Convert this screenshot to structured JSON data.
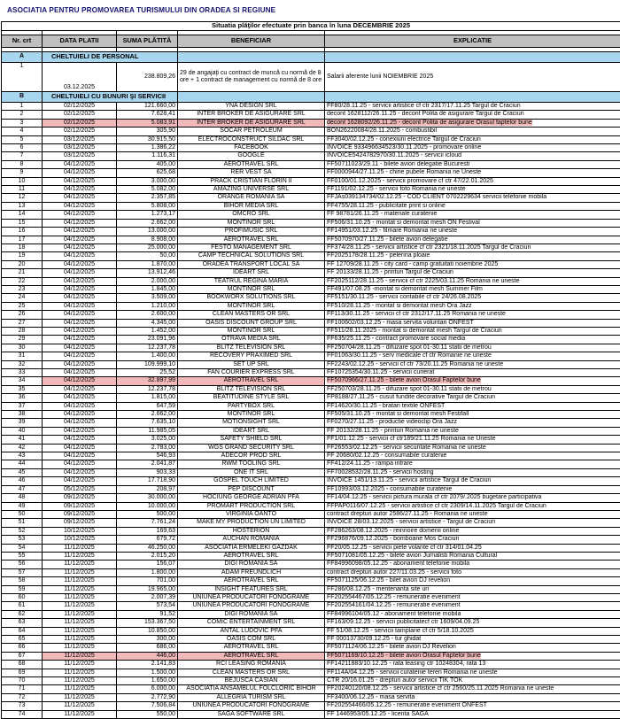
{
  "page_title": "ASOCIATIA PENTRU PROMOVAREA TURISMULUI DIN ORADEA SI REGIUNE",
  "table": {
    "title": "Situatia plăţilor  efectuate prin banca în luna DECEMBRIE 2025",
    "columns": {
      "nr": "Nr. crt",
      "date": "DATA PLATII",
      "amount": "SUMA PLĂTITĂ",
      "beneficiary": "BENEFICIAR",
      "explanation": "EXPLICATIE"
    },
    "section_a": {
      "code": "A",
      "label": "CHELTUIELI DE PERSONAL"
    },
    "personnel_row": {
      "nr": "1",
      "date": "03.12.2025",
      "amount": "238.809,26",
      "beneficiary": "29 de angajaţi cu contract de muncă cu normă de 8 ore + 1 contract de management cu normă de 8 ore",
      "explanation": "Salarii aferente lunii NOIEMBRIE 2025"
    },
    "section_b": {
      "code": "B",
      "label": "CHELTUIELI CU BUNURI ŞI SERVICII"
    },
    "rows": [
      {
        "nr": "1",
        "date": "02/12/2025",
        "amount": "121.660,00",
        "beneficiary": "YNA DESIGN SRL",
        "explanation": "FF80/28.11.25 - servicii artistice cf ctr  2317/17.11.25 Targul de Craciun",
        "highlight": false
      },
      {
        "nr": "2",
        "date": "02/12/2025",
        "amount": "7.628,41",
        "beneficiary": "INTER BROKER DE ASIGURARE SRL",
        "explanation": "decont 1628112/26.11.25 - decont Polita de asigurare  Targul de Craciun",
        "highlight": false
      },
      {
        "nr": "3",
        "date": "02/12/2025",
        "amount": "5.083,91",
        "beneficiary": "INTER BROKER DE ASIGURARE SRL",
        "explanation": "decont 1628092/26.11.25 - decont Polita de asigurare Orasul faptelor bune",
        "highlight": true
      },
      {
        "nr": "4",
        "date": "02/12/2025",
        "amount": "305,90",
        "beneficiary": "SOCAR PETROLEUM",
        "explanation": "BON26220084/28.11.2025 - combustibil",
        "highlight": false
      },
      {
        "nr": "5",
        "date": "03/12/2025",
        "amount": "30.915,50",
        "beneficiary": "ELECTROCONSTRUCT SILDAC SRL",
        "explanation": "FF3040/02.12.25 - conexiuni electrice Targul de Craciun",
        "highlight": false
      },
      {
        "nr": "6",
        "date": "03/12/2025",
        "amount": "1.386,22",
        "beneficiary": "FACEBOOK",
        "explanation": "INVOICE 933496634523/30.11.2025 - promovare online",
        "highlight": false
      },
      {
        "nr": "7",
        "date": "03/12/2025",
        "amount": "1.116,31",
        "beneficiary": "GOOGLE",
        "explanation": "INVOICE5424782970/30.11.2025 - servicii icloud",
        "highlight": false
      },
      {
        "nr": "8",
        "date": "04/12/2025",
        "amount": "405,00",
        "beneficiary": "AEROTRAVEL SRL",
        "explanation": "FF50711023/29.11 - bilete avion delegatie Bucuresti",
        "highlight": false
      },
      {
        "nr": "9",
        "date": "04/12/2025",
        "amount": "625,68",
        "beneficiary": "RER VEST SA",
        "explanation": "FF0000944/27.11.25 - chirie pubele Romania ne Uneste",
        "highlight": false
      },
      {
        "nr": "10",
        "date": "04/12/2025",
        "amount": "3.000,00",
        "beneficiary": "PRACK CRISTIAN FLORIN II",
        "explanation": "FF0100/01.12.2025 - servicii promovare cf ctr 47/22.01.2025",
        "highlight": false
      },
      {
        "nr": "11",
        "date": "04/12/2025",
        "amount": "5.082,00",
        "beneficiary": "AMAZING UNIVERSE SRL",
        "explanation": "FF1191/02.12.25 - servicii foto Romania ne uneste",
        "highlight": false
      },
      {
        "nr": "12",
        "date": "04/12/2025",
        "amount": "2.357,85",
        "beneficiary": "ORANGE ROMANIA SA",
        "explanation": "FFJAs039134734/02.12.25 - COD CLIENT 0702229634 servicii telefonie mobila",
        "highlight": false
      },
      {
        "nr": "13",
        "date": "04/12/2025",
        "amount": "5.808,00",
        "beneficiary": "BIHOR MEDIA SRL",
        "explanation": "FF4755/28.11.25 - publicitate print si online",
        "highlight": false
      },
      {
        "nr": "14",
        "date": "04/12/2025",
        "amount": "1.273,17",
        "beneficiary": "OMCRO SRL",
        "explanation": "FF 98781/26.11.25 - materiale curatenie",
        "highlight": false
      },
      {
        "nr": "15",
        "date": "04/12/2025",
        "amount": "2.662,00",
        "beneficiary": "MONTINOR SRL",
        "explanation": "FF506/31.10.25 - montat si demontat mesh ON Festival",
        "highlight": false
      },
      {
        "nr": "16",
        "date": "04/12/2025",
        "amount": "13.000,00",
        "beneficiary": "PROFIMUSIC SRL",
        "explanation": "FF14951/03.12.25 - filmare Romania ne uneste",
        "highlight": false
      },
      {
        "nr": "17",
        "date": "04/12/2025",
        "amount": "8.908,00",
        "beneficiary": "AEROTRAVEL SRL",
        "explanation": "FF5070970/27.11.25 - bilete avion delegatie",
        "highlight": false
      },
      {
        "nr": "18",
        "date": "04/12/2025",
        "amount": "25.000,00",
        "beneficiary": "FESTO MANAGEMENT SRL",
        "explanation": "FF374/28.11.25 - servicii artistice cf ctr 2321/18.11.2025 Targul de Craciun",
        "highlight": false
      },
      {
        "nr": "19",
        "date": "04/12/2025",
        "amount": "50,00",
        "beneficiary": "CAMP TECHNICAL SOLUTIONS SRL",
        "explanation": "FF2025178/28.11.25 - pelerina ploaie",
        "highlight": false
      },
      {
        "nr": "20",
        "date": "04/12/2025",
        "amount": "1.870,00",
        "beneficiary": "ORADEA TRANSPORT LOCAL SA",
        "explanation": "FF 12709/28.11.25 - city card - camp gratuitati noiembrie 2025",
        "highlight": false
      },
      {
        "nr": "21",
        "date": "04/12/2025",
        "amount": "13.912,46",
        "beneficiary": "IDEART SRL",
        "explanation": "FF 20133/28.11.25 - printuri Targul de Craciun",
        "highlight": false
      },
      {
        "nr": "22",
        "date": "04/12/2025",
        "amount": "2.000,00",
        "beneficiary": "TEATRUL REGINA MARIA",
        "explanation": "FF2025112/28.11.25 - servicii cf ctr 2225/03.11.25 Romania ne uneste",
        "highlight": false
      },
      {
        "nr": "23",
        "date": "04/12/2025",
        "amount": "1.845,00",
        "beneficiary": "MONTINOR SRL",
        "explanation": "FF491/07.08.25 -montat si demontat mesh Summer Film",
        "highlight": false
      },
      {
        "nr": "24",
        "date": "04/12/2025",
        "amount": "3.509,00",
        "beneficiary": "BOOKWORX SOLUTIONS SRL",
        "explanation": "FF5151/30.11.25 - servicii contabile cf ctr 24/26.08.2025",
        "highlight": false
      },
      {
        "nr": "25",
        "date": "04/12/2025",
        "amount": "1.210,00",
        "beneficiary": "MONTINOR SRL",
        "explanation": "FF510/28.11.25 - montat si demontat mesh Ora Jazz",
        "highlight": false
      },
      {
        "nr": "26",
        "date": "04/12/2025",
        "amount": "2.600,00",
        "beneficiary": "CLEAN MASTERS OR SRL",
        "explanation": "FF113/30.11.25 - servicii cf ctr 2312/17.11.25 Romania ne uneste",
        "highlight": false
      },
      {
        "nr": "27",
        "date": "04/12/2025",
        "amount": "4.345,00",
        "beneficiary": "OASIS DISCOUNT GROUP SRL",
        "explanation": "FF100602/03.12.25 - masa servita voluntari ONFEST",
        "highlight": false
      },
      {
        "nr": "28",
        "date": "04/12/2025",
        "amount": "1.452,00",
        "beneficiary": "MONTINOR SRL",
        "explanation": "FF511/28.11.2025 - montat si demontat mesh Targul de Craciun",
        "highlight": false
      },
      {
        "nr": "29",
        "date": "04/12/2025",
        "amount": "23.091,96",
        "beneficiary": "OTRAVA MEDIA SRL",
        "explanation": "FF635/25.11.25 - contract promovare social media",
        "highlight": false
      },
      {
        "nr": "30",
        "date": "04/12/2025",
        "amount": "12.237,78",
        "beneficiary": "BLITZ TELEVISION SRL",
        "explanation": "FF250704/28.11.25 - difuzare spot 01-30.11 statii de metrou",
        "highlight": false
      },
      {
        "nr": "31",
        "date": "04/12/2025",
        "amount": "1.400,00",
        "beneficiary": "RECOVERY PRAXIMED SRL",
        "explanation": "FF01063/30.11.25 - serv medicale cf ctr Romanie ne uneste",
        "highlight": false
      },
      {
        "nr": "32",
        "date": "04/12/2025",
        "amount": "109.999,10",
        "beneficiary": "SET UP SRL",
        "explanation": "FF2243/02.12.25 - servicii cf ctr 73/20.11.25 Romania ne uneste",
        "highlight": false
      },
      {
        "nr": "33",
        "date": "04/12/2025",
        "amount": "25,52",
        "beneficiary": "FAN COURIER EXPRESS SRL",
        "explanation": "FF10725354/30.11.25 - servicii curierat",
        "highlight": false
      },
      {
        "nr": "34",
        "date": "04/12/2025",
        "amount": "32.897,99",
        "beneficiary": "AEROTRAVEL SRL",
        "explanation": "FF5070966/27.11.25 - bilete avion Orasul Faptelor bune",
        "highlight": true
      },
      {
        "nr": "35",
        "date": "04/12/2025",
        "amount": "12.237,78",
        "beneficiary": "BLITZ TELEVISION SRL",
        "explanation": "FF250703/28.11.25 - difuzare spot 01-30.11 statii de metrou",
        "highlight": false
      },
      {
        "nr": "36",
        "date": "04/12/2025",
        "amount": "1.815,00",
        "beneficiary": "BEATITUDINE STYLE SRL",
        "explanation": "FP8188/27.11.25 - cusut fundite decorative Targul de Craciun",
        "highlight": false
      },
      {
        "nr": "37",
        "date": "04/12/2025",
        "amount": "647,59",
        "beneficiary": "PARTYBOX SRL",
        "explanation": "FF14620/30.11.25 - bratari textile ONFEST",
        "highlight": false
      },
      {
        "nr": "38",
        "date": "04/12/2025",
        "amount": "2.662,00",
        "beneficiary": "MONTINOR SRL",
        "explanation": "FF505/31.10.25 - montat si demontat mesh Festifall",
        "highlight": false
      },
      {
        "nr": "39",
        "date": "04/12/2025",
        "amount": "7.635,10",
        "beneficiary": "MOTIONSIGHT SRL",
        "explanation": "FF0270/27.11.25 - productie videoclip Ora Jazz",
        "highlight": false
      },
      {
        "nr": "40",
        "date": "04/12/2025",
        "amount": "11.985,05",
        "beneficiary": "IDEART SRL",
        "explanation": "FF 20132/28.11.25 - printuri Romania ne uneste",
        "highlight": false
      },
      {
        "nr": "41",
        "date": "04/12/2025",
        "amount": "3.025,00",
        "beneficiary": "SAFETY SHIELD SRL",
        "explanation": "FF1/01.12.25 - servicii cf ctr189/21.11.25 Romania ne Uneste",
        "highlight": false
      },
      {
        "nr": "42",
        "date": "04/12/2025",
        "amount": "2.783,00",
        "beneficiary": "WGS GRAND SECURITY SRL",
        "explanation": "FF26553/02.12.25 - servicii securitate Romania ne uneste",
        "highlight": false
      },
      {
        "nr": "43",
        "date": "04/12/2025",
        "amount": "546,93",
        "beneficiary": "ADECOR PROD SRL",
        "explanation": "FF 20680/02.12.25 - consumabile curatenie",
        "highlight": false
      },
      {
        "nr": "44",
        "date": "04/12/2025",
        "amount": "2.041,87",
        "beneficiary": "RWM TOOLING SRL",
        "explanation": "FF412/24.11.25 - rampa intrare",
        "highlight": false
      },
      {
        "nr": "45",
        "date": "04/12/2025",
        "amount": "903,33",
        "beneficiary": "ONE IT SRL",
        "explanation": "FF70028532/28.11.25 - servicii hosting",
        "highlight": false
      },
      {
        "nr": "46",
        "date": "04/12/2025",
        "amount": "17.718,90",
        "beneficiary": "GOSPEL TOUCH LIMITED",
        "explanation": "INVOICE 1451/13.11.25 - servicii artistice Targul de Craciun",
        "highlight": false
      },
      {
        "nr": "47",
        "date": "05/12/2025",
        "amount": "208,97",
        "beneficiary": "PEP DISCOUNT",
        "explanation": "FF10993/03.12.2025 - consumabile curatenie",
        "highlight": false
      },
      {
        "nr": "48",
        "date": "09/12/2025",
        "amount": "30.000,00",
        "beneficiary": "HOCIUNG GEORGE ADRIAN PFA",
        "explanation": "FF14/04.12.25 - servicii pictura murala cf ctr 2079/.2025 bugetare participativa",
        "highlight": false
      },
      {
        "nr": "49",
        "date": "09/12/2025",
        "amount": "10.000,00",
        "beneficiary": "PROMART PRODUCTION SRL",
        "explanation": "FFPAP0116/07.12.25 - servicii artistice cf ctr 2309/14.11.2025 Targul de Craciun",
        "highlight": false
      },
      {
        "nr": "50",
        "date": "09/12/2025",
        "amount": "500,00",
        "beneficiary": "VIRGINIA OANTO",
        "explanation": "contract drepturi autor 2586/27.11.25 - Romania ne uneste",
        "highlight": false
      },
      {
        "nr": "51",
        "date": "09/12/2025",
        "amount": "7.761,24",
        "beneficiary": "MAKE MY PRODUCTION UN LIMITED",
        "explanation": "INVOICE 28/03.12.2025 - servicii artistice - Targul de Craciun",
        "highlight": false
      },
      {
        "nr": "52",
        "date": "10/12/2025",
        "amount": "169,63",
        "beneficiary": "HOSTERION",
        "explanation": "FF286263/08.12.2025 - reinnoire domenii online",
        "highlight": false
      },
      {
        "nr": "53",
        "date": "10/12/2025",
        "amount": "679,72",
        "beneficiary": "AUCHAN ROMANIA",
        "explanation": "FF296876/09.12.2025 - bomboane Mos Craciun",
        "highlight": false
      },
      {
        "nr": "54",
        "date": "11/12/2025",
        "amount": "46.250,00",
        "beneficiary": "ASOCIATIA ERMELEKI GAZDAK",
        "explanation": "FF20/05.12.25 - servicii piete volante cf ctr 314/01.04.25",
        "highlight": false
      },
      {
        "nr": "55",
        "date": "11/12/2025",
        "amount": "2.015,20",
        "beneficiary": "AEROTRAVEL SRL",
        "explanation": "FF5071081/05.12.25 - bilete avion Jurnalisti Romania Cultural",
        "highlight": false
      },
      {
        "nr": "56",
        "date": "11/12/2025",
        "amount": "156,07",
        "beneficiary": "DIGI ROMANIA SA",
        "explanation": "FF84996098/05.12.25 - abonament telefonie mobila",
        "highlight": false
      },
      {
        "nr": "57",
        "date": "11/12/2025",
        "amount": "1.800,00",
        "beneficiary": "ADAM FREUNDLICH",
        "explanation": "contract drepturi autor 227/11.03.25 - servicii foto",
        "highlight": false
      },
      {
        "nr": "58",
        "date": "11/12/2025",
        "amount": "701,00",
        "beneficiary": "AEROTRAVEL SRL",
        "explanation": "FF5071125/06.12.25 - bilet avion DJ revelion",
        "highlight": false
      },
      {
        "nr": "59",
        "date": "11/12/2025",
        "amount": "19.965,00",
        "beneficiary": "INSIGHT FEATURES SRL",
        "explanation": "FF286/08.12.25 - mentenanta site uri",
        "highlight": false
      },
      {
        "nr": "60",
        "date": "11/12/2025",
        "amount": "2.007,39",
        "beneficiary": "UNIUNEA PRODUCATORI FONOGRAME",
        "explanation": "FF202554467/05.12.25 - remuneratie eveniment",
        "highlight": false
      },
      {
        "nr": "61",
        "date": "11/12/2025",
        "amount": "573,54",
        "beneficiary": "UNIUNEA PRODUCATORI FONOGRAME",
        "explanation": "FF202554161/04.12.25 - remuneratie eveniment",
        "highlight": false
      },
      {
        "nr": "62",
        "date": "11/12/2025",
        "amount": "91,52",
        "beneficiary": "DIGI ROMANIA SA",
        "explanation": "FF84996104/05.12 - abonament telefonie mobila",
        "highlight": false
      },
      {
        "nr": "63",
        "date": "11/12/2025",
        "amount": "153.367,50",
        "beneficiary": "COMIC ENTERTAINMENT SRL",
        "explanation": "FF163/09.12.25 - servicii publicitatecf ctr 1609/04.09.25",
        "highlight": false
      },
      {
        "nr": "64",
        "date": "11/12/2025",
        "amount": "10.850,00",
        "beneficiary": "ANTAL LUDOVIC PFA",
        "explanation": "FF 51/08.12.25 - servicii tamplarie cf ctr 5/18.10.2025",
        "highlight": false
      },
      {
        "nr": "65",
        "date": "11/12/2025",
        "amount": "300,00",
        "beneficiary": "OASIS COM SRL",
        "explanation": "FF 00013730/09.12.25 - tur ghidat",
        "highlight": false
      },
      {
        "nr": "66",
        "date": "11/12/2025",
        "amount": "686,00",
        "beneficiary": "AEROTRAVEL SRL",
        "explanation": "FF5071124/06.12.25 - bilete avion DJ Revelion",
        "highlight": false
      },
      {
        "nr": "67",
        "date": "11/12/2025",
        "amount": "446,00",
        "beneficiary": "AEROTRAVEL SRL",
        "explanation": "FF5071169/10.12.25 - bilete avion Orasul Faptelor bune",
        "highlight": true
      },
      {
        "nr": "68",
        "date": "11/12/2025",
        "amount": "2.141,83",
        "beneficiary": "RCI LEASING ROMANIA",
        "explanation": "FF14211883/10.12.25 - rata leasing ctr 10248304, rata 13",
        "highlight": false
      },
      {
        "nr": "69",
        "date": "11/12/2025",
        "amount": "1.500,00",
        "beneficiary": "CLEAN MASTERS OR SRL",
        "explanation": "FF114A/04.12.25 - servicii curatenie teren Romania ne uneste",
        "highlight": false
      },
      {
        "nr": "70",
        "date": "11/12/2025",
        "amount": "1.650,00",
        "beneficiary": "BEJUSCA CASIAN",
        "explanation": "CTR 20/16.01.25 - drepturi autor servicii TIK TOK",
        "highlight": false
      },
      {
        "nr": "71",
        "date": "11/12/2025",
        "amount": "6.000,00",
        "beneficiary": "ASOCIATIA ANSAMBLUL FOLCLORIC BIHOR",
        "explanation": "FF20240120/08.12.25 - servicii artistice cf ctr 2560/25.11.2025 Romania ne uneste",
        "highlight": false
      },
      {
        "nr": "72",
        "date": "11/12/2025",
        "amount": "2.772,90",
        "beneficiary": "ALLEGRIA TURISM SRL",
        "explanation": "FF3400/06.12.25 - masa servita",
        "highlight": false
      },
      {
        "nr": "73",
        "date": "11/12/2025",
        "amount": "7.506,84",
        "beneficiary": "UNIUNEA PRODUCATORI FONOGRAME",
        "explanation": "FF202554466/05.12.25 - remuneratie eveniment ONFEST",
        "highlight": false
      },
      {
        "nr": "74",
        "date": "11/12/2025",
        "amount": "550,00",
        "beneficiary": "SAGA SOFTWARE SRL",
        "explanation": "FF 1446953/05.12.25 - licenta SAGA",
        "highlight": false
      }
    ]
  },
  "colors": {
    "header_bg": "#bfbfbf",
    "section_bg": "#a9d6ef",
    "highlight_bg": "#f1b9b9",
    "title_color": "#161673",
    "border": "#000000"
  }
}
